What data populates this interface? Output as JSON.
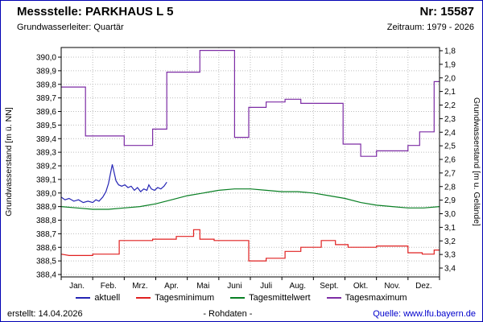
{
  "header": {
    "title": "Messstelle: PARKHAUS L 5",
    "number": "Nr: 15587",
    "aquifer": "Grundwasserleiter: Quartär",
    "period": "Zeitraum: 1979 - 2026"
  },
  "footer": {
    "created": "erstellt: 14.04.2026",
    "center": "- Rohdaten -",
    "source": "Quelle: www.lfu.bayern.de"
  },
  "chart_data": {
    "type": "line",
    "x_axis": {
      "labels": [
        "Jan.",
        "Feb.",
        "Mrz.",
        "Apr.",
        "Mai",
        "Juni",
        "Juli",
        "Aug.",
        "Sept.",
        "Okt.",
        "Nov.",
        "Dez."
      ]
    },
    "y_left": {
      "label": "Grundwasserstand [m ü. NN]",
      "max": 390.0,
      "min": 388.4,
      "tick_step": 0.1,
      "ticks": [
        "390,0",
        "389,9",
        "389,8",
        "389,7",
        "389,6",
        "389,5",
        "389,4",
        "389,3",
        "389,2",
        "389,1",
        "389,0",
        "388,9",
        "388,8",
        "388,7",
        "388,6",
        "388,5",
        "388,4"
      ]
    },
    "y_right": {
      "label": "Grundwasserstand [m u. Gelände]",
      "max": 3.4,
      "min": 1.8,
      "tick_step": 0.1,
      "ticks": [
        "1,8",
        "1,9",
        "2,0",
        "2,1",
        "2,2",
        "2,3",
        "2,4",
        "2,5",
        "2,6",
        "2,7",
        "2,8",
        "2,9",
        "3,0",
        "3,1",
        "3,2",
        "3,3",
        "3,4"
      ]
    },
    "grid": true,
    "legend_position": "bottom",
    "series": [
      {
        "name": "aktuell",
        "color": "#2424b4",
        "points": [
          [
            0.0,
            388.97
          ],
          [
            0.12,
            388.95
          ],
          [
            0.25,
            388.96
          ],
          [
            0.4,
            388.94
          ],
          [
            0.55,
            388.95
          ],
          [
            0.7,
            388.93
          ],
          [
            0.85,
            388.94
          ],
          [
            1.0,
            388.93
          ],
          [
            1.1,
            388.95
          ],
          [
            1.2,
            388.94
          ],
          [
            1.32,
            388.97
          ],
          [
            1.42,
            389.01
          ],
          [
            1.5,
            389.07
          ],
          [
            1.56,
            389.14
          ],
          [
            1.62,
            389.21
          ],
          [
            1.68,
            389.15
          ],
          [
            1.74,
            389.09
          ],
          [
            1.82,
            389.06
          ],
          [
            1.92,
            389.05
          ],
          [
            2.02,
            389.06
          ],
          [
            2.12,
            389.04
          ],
          [
            2.22,
            389.05
          ],
          [
            2.32,
            389.02
          ],
          [
            2.42,
            389.04
          ],
          [
            2.52,
            389.01
          ],
          [
            2.62,
            389.03
          ],
          [
            2.72,
            389.02
          ],
          [
            2.78,
            389.06
          ],
          [
            2.86,
            389.03
          ],
          [
            2.96,
            389.02
          ],
          [
            3.06,
            389.04
          ],
          [
            3.16,
            389.03
          ],
          [
            3.26,
            389.05
          ],
          [
            3.35,
            389.08
          ]
        ]
      },
      {
        "name": "Tagesminimum",
        "color": "#e02020",
        "points": [
          [
            0,
            388.55
          ],
          [
            0.25,
            388.54
          ],
          [
            1.0,
            388.54
          ],
          [
            1.0,
            388.55
          ],
          [
            1.84,
            388.55
          ],
          [
            1.84,
            388.65
          ],
          [
            2.9,
            388.65
          ],
          [
            2.9,
            388.66
          ],
          [
            3.65,
            388.66
          ],
          [
            3.65,
            388.68
          ],
          [
            4.2,
            388.68
          ],
          [
            4.2,
            388.73
          ],
          [
            4.4,
            388.73
          ],
          [
            4.4,
            388.66
          ],
          [
            4.85,
            388.66
          ],
          [
            4.85,
            388.65
          ],
          [
            5.95,
            388.65
          ],
          [
            5.95,
            388.5
          ],
          [
            6.5,
            388.5
          ],
          [
            6.5,
            388.52
          ],
          [
            7.1,
            388.52
          ],
          [
            7.1,
            388.57
          ],
          [
            7.6,
            388.57
          ],
          [
            7.6,
            388.6
          ],
          [
            8.25,
            388.6
          ],
          [
            8.25,
            388.65
          ],
          [
            8.7,
            388.65
          ],
          [
            8.7,
            388.62
          ],
          [
            9.1,
            388.62
          ],
          [
            9.1,
            388.6
          ],
          [
            10.0,
            388.6
          ],
          [
            10.0,
            388.61
          ],
          [
            11.0,
            388.61
          ],
          [
            11.0,
            388.56
          ],
          [
            11.45,
            388.56
          ],
          [
            11.45,
            388.55
          ],
          [
            11.83,
            388.55
          ],
          [
            11.83,
            388.58
          ],
          [
            12,
            388.58
          ]
        ]
      },
      {
        "name": "Tagesmittelwert",
        "color": "#087f23",
        "points": [
          [
            0,
            388.9
          ],
          [
            0.5,
            388.89
          ],
          [
            1,
            388.88
          ],
          [
            1.5,
            388.88
          ],
          [
            2,
            388.89
          ],
          [
            2.5,
            388.9
          ],
          [
            3,
            388.92
          ],
          [
            3.5,
            388.95
          ],
          [
            4,
            388.98
          ],
          [
            4.5,
            389.0
          ],
          [
            5,
            389.02
          ],
          [
            5.5,
            389.03
          ],
          [
            6,
            389.03
          ],
          [
            6.5,
            389.02
          ],
          [
            7,
            389.01
          ],
          [
            7.5,
            389.01
          ],
          [
            8,
            389.0
          ],
          [
            8.5,
            388.98
          ],
          [
            9,
            388.96
          ],
          [
            9.5,
            388.93
          ],
          [
            10,
            388.91
          ],
          [
            10.5,
            388.9
          ],
          [
            11,
            388.89
          ],
          [
            11.5,
            388.89
          ],
          [
            12,
            388.9
          ]
        ]
      },
      {
        "name": "Tagesmaximum",
        "color": "#7d2ca5",
        "points": [
          [
            0,
            389.78
          ],
          [
            0.77,
            389.78
          ],
          [
            0.77,
            389.42
          ],
          [
            2.0,
            389.42
          ],
          [
            2.0,
            389.35
          ],
          [
            2.9,
            389.35
          ],
          [
            2.9,
            389.47
          ],
          [
            3.35,
            389.47
          ],
          [
            3.35,
            389.89
          ],
          [
            4.4,
            389.89
          ],
          [
            4.4,
            390.05
          ],
          [
            5.5,
            390.05
          ],
          [
            5.5,
            389.41
          ],
          [
            5.95,
            389.41
          ],
          [
            5.95,
            389.63
          ],
          [
            6.5,
            389.63
          ],
          [
            6.5,
            389.67
          ],
          [
            7.1,
            389.67
          ],
          [
            7.1,
            389.69
          ],
          [
            7.6,
            389.69
          ],
          [
            7.6,
            389.66
          ],
          [
            8.94,
            389.66
          ],
          [
            8.94,
            389.36
          ],
          [
            9.5,
            389.36
          ],
          [
            9.5,
            389.27
          ],
          [
            10.0,
            389.27
          ],
          [
            10.0,
            389.31
          ],
          [
            11.0,
            389.31
          ],
          [
            11.0,
            389.35
          ],
          [
            11.37,
            389.35
          ],
          [
            11.37,
            389.45
          ],
          [
            11.83,
            389.45
          ],
          [
            11.83,
            389.82
          ],
          [
            12,
            389.82
          ]
        ]
      }
    ]
  }
}
